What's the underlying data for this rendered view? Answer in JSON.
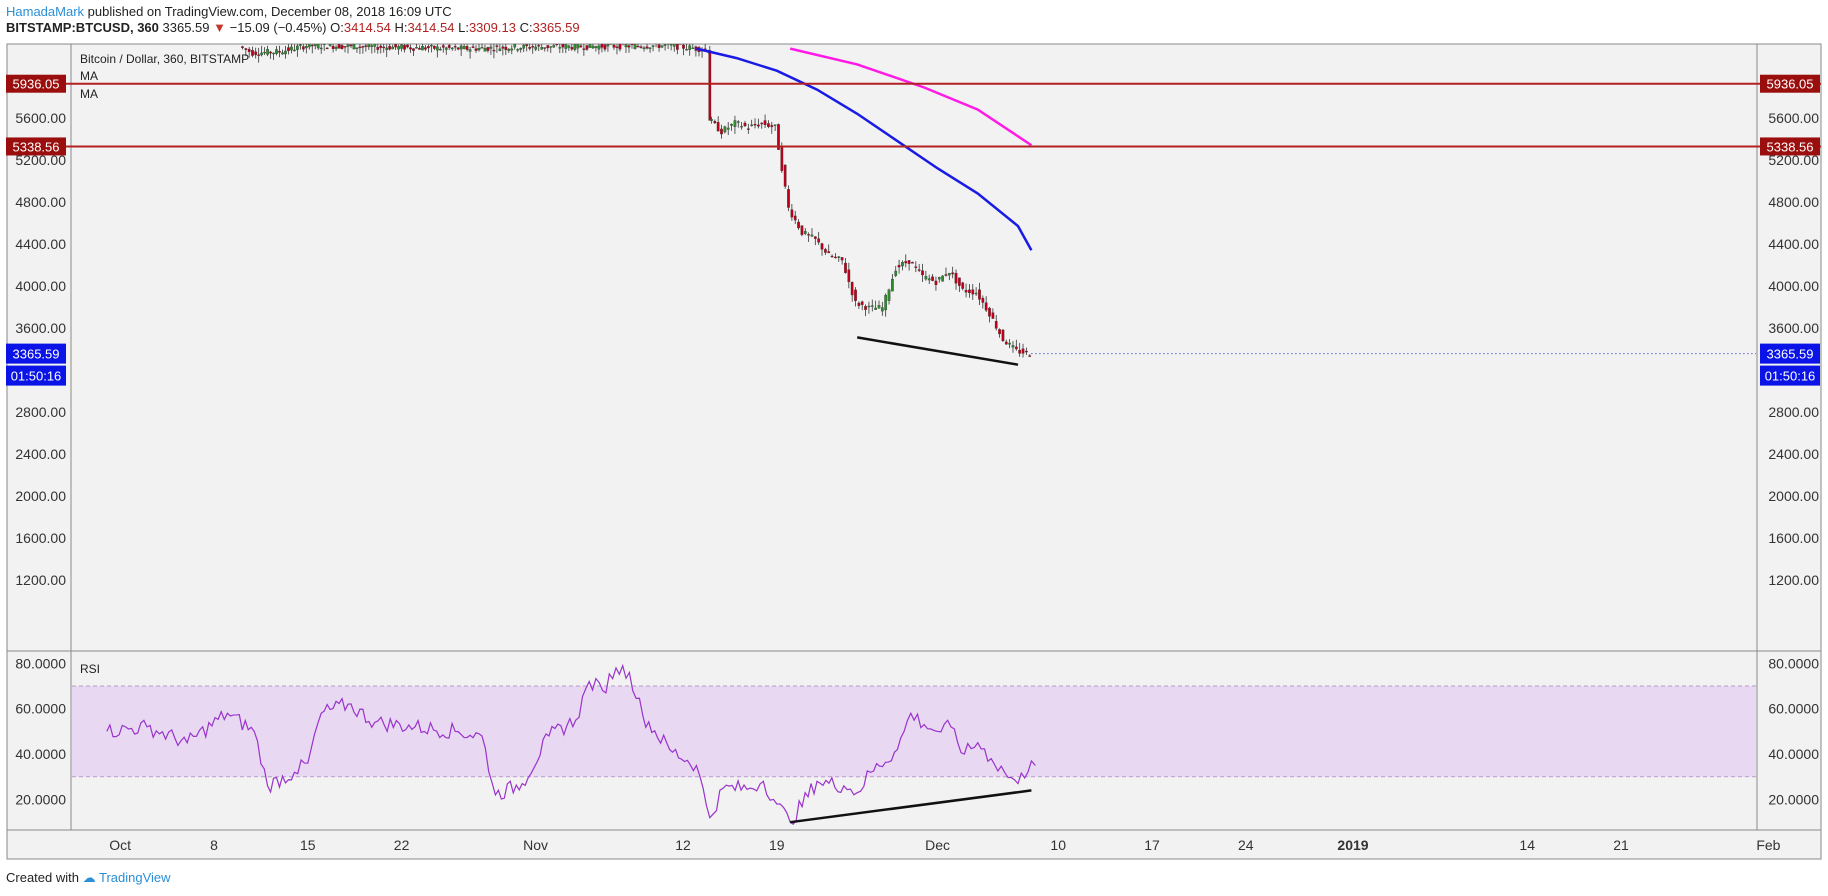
{
  "header": {
    "author": "HamadaMark",
    "published": "published on TradingView.com, December 08, 2018 16:09 UTC",
    "symbol": "BITSTAMP:BTCUSD, 360",
    "last": "3365.59",
    "change_arrow": "▼",
    "change": "−15.09 (−0.45%)",
    "o_label": "O:",
    "o": "3414.54",
    "h_label": "H:",
    "h": "3414.54",
    "l_label": "L:",
    "l": "3309.13",
    "c_label": "C:",
    "c": "3365.59"
  },
  "legend": {
    "title": "Bitcoin / Dollar, 360, BITSTAMP",
    "ma1": "MA",
    "ma2": "MA",
    "rsi": "RSI"
  },
  "footer": {
    "created": "Created with",
    "brand": "TradingView"
  },
  "colors": {
    "bull": "#2e8b2e",
    "bear": "#c0001a",
    "ma_fast": "#1a1ae6",
    "ma_slow": "#ff1ae6",
    "level": "#b22222",
    "price_tag": "#0a14e6",
    "rsi_line": "#9933cc",
    "rsi_band": "#e8d8f2"
  },
  "chart_data": [
    {
      "type": "candlestick",
      "title": "Bitcoin / Dollar, 360, BITSTAMP",
      "ylim": [
        800,
        6200
      ],
      "y_ticks": [
        "1200.00",
        "1600.00",
        "2000.00",
        "2400.00",
        "2800.00",
        "3600.00",
        "4000.00",
        "4400.00",
        "4800.00",
        "5200.00",
        "5600.00"
      ],
      "x_ticks": [
        "Oct",
        "8",
        "15",
        "22",
        "Nov",
        "12",
        "19",
        "Dec",
        "10",
        "17",
        "24",
        "2019",
        "14",
        "21",
        "Feb"
      ],
      "levels": [
        {
          "label": "5936.05",
          "value": 5936.05
        },
        {
          "label": "5338.56",
          "value": 5338.56
        }
      ],
      "last_price": {
        "label": "3365.59",
        "value": 3365.59,
        "countdown": "01:50:16"
      },
      "close_path": [
        {
          "x": "2018-10-10",
          "y": 6290
        },
        {
          "x": "2018-10-11",
          "y": 6230
        },
        {
          "x": "2018-10-13",
          "y": 6240
        },
        {
          "x": "2018-10-15",
          "y": 6300
        },
        {
          "x": "2018-10-27",
          "y": 6270
        },
        {
          "x": "2018-10-31",
          "y": 6285
        },
        {
          "x": "2018-11-11",
          "y": 6300
        },
        {
          "x": "2018-11-14",
          "y": 6260
        },
        {
          "x": "2018-11-14",
          "y": 5600
        },
        {
          "x": "2018-11-15",
          "y": 5480
        },
        {
          "x": "2018-11-16",
          "y": 5560
        },
        {
          "x": "2018-11-17",
          "y": 5520
        },
        {
          "x": "2018-11-18",
          "y": 5560
        },
        {
          "x": "2018-11-19",
          "y": 5520
        },
        {
          "x": "2018-11-20",
          "y": 4750
        },
        {
          "x": "2018-11-21",
          "y": 4520
        },
        {
          "x": "2018-11-22",
          "y": 4450
        },
        {
          "x": "2018-11-23",
          "y": 4300
        },
        {
          "x": "2018-11-24",
          "y": 4250
        },
        {
          "x": "2018-11-25",
          "y": 3850
        },
        {
          "x": "2018-11-26",
          "y": 3800
        },
        {
          "x": "2018-11-27",
          "y": 3800
        },
        {
          "x": "2018-11-28",
          "y": 4180
        },
        {
          "x": "2018-11-29",
          "y": 4250
        },
        {
          "x": "2018-11-30",
          "y": 4100
        },
        {
          "x": "2018-12-01",
          "y": 4050
        },
        {
          "x": "2018-12-02",
          "y": 4150
        },
        {
          "x": "2018-12-03",
          "y": 3970
        },
        {
          "x": "2018-12-04",
          "y": 3950
        },
        {
          "x": "2018-12-05",
          "y": 3750
        },
        {
          "x": "2018-12-06",
          "y": 3500
        },
        {
          "x": "2018-12-07",
          "y": 3390
        },
        {
          "x": "2018-12-08",
          "y": 3366
        }
      ],
      "ma_fast": [
        {
          "x": "2018-11-13",
          "y": 6270
        },
        {
          "x": "2018-11-16",
          "y": 6180
        },
        {
          "x": "2018-11-19",
          "y": 6060
        },
        {
          "x": "2018-11-22",
          "y": 5880
        },
        {
          "x": "2018-11-25",
          "y": 5650
        },
        {
          "x": "2018-11-28",
          "y": 5390
        },
        {
          "x": "2018-12-01",
          "y": 5130
        },
        {
          "x": "2018-12-04",
          "y": 4890
        },
        {
          "x": "2018-12-07",
          "y": 4580
        },
        {
          "x": "2018-12-08",
          "y": 4350
        }
      ],
      "ma_slow": [
        {
          "x": "2018-11-20",
          "y": 6270
        },
        {
          "x": "2018-11-25",
          "y": 6120
        },
        {
          "x": "2018-11-30",
          "y": 5900
        },
        {
          "x": "2018-12-04",
          "y": 5690
        },
        {
          "x": "2018-12-08",
          "y": 5350
        }
      ],
      "trendline": [
        {
          "x": "2018-11-25",
          "y": 3520
        },
        {
          "x": "2018-12-07",
          "y": 3260
        }
      ]
    },
    {
      "type": "line",
      "title": "RSI",
      "ylim": [
        7,
        85
      ],
      "y_ticks": [
        "20.0000",
        "40.0000",
        "60.0000",
        "80.0000"
      ],
      "band": [
        30,
        70
      ],
      "series": [
        {
          "values": [
            {
              "x": "2018-09-30",
              "y": 50
            },
            {
              "x": "2018-10-03",
              "y": 52
            },
            {
              "x": "2018-10-06",
              "y": 45
            },
            {
              "x": "2018-10-09",
              "y": 58
            },
            {
              "x": "2018-10-11",
              "y": 50
            },
            {
              "x": "2018-10-12",
              "y": 26
            },
            {
              "x": "2018-10-14",
              "y": 32
            },
            {
              "x": "2018-10-15",
              "y": 36
            },
            {
              "x": "2018-10-16",
              "y": 58
            },
            {
              "x": "2018-10-18",
              "y": 62
            },
            {
              "x": "2018-10-20",
              "y": 54
            },
            {
              "x": "2018-10-23",
              "y": 52
            },
            {
              "x": "2018-10-26",
              "y": 50
            },
            {
              "x": "2018-10-28",
              "y": 48
            },
            {
              "x": "2018-10-29",
              "y": 22
            },
            {
              "x": "2018-10-31",
              "y": 27
            },
            {
              "x": "2018-11-02",
              "y": 48
            },
            {
              "x": "2018-11-04",
              "y": 55
            },
            {
              "x": "2018-11-05",
              "y": 72
            },
            {
              "x": "2018-11-06",
              "y": 68
            },
            {
              "x": "2018-11-07",
              "y": 78
            },
            {
              "x": "2018-11-08",
              "y": 76
            },
            {
              "x": "2018-11-09",
              "y": 57
            },
            {
              "x": "2018-11-11",
              "y": 42
            },
            {
              "x": "2018-11-13",
              "y": 35
            },
            {
              "x": "2018-11-14",
              "y": 12
            },
            {
              "x": "2018-11-15",
              "y": 25
            },
            {
              "x": "2018-11-17",
              "y": 25
            },
            {
              "x": "2018-11-18",
              "y": 28
            },
            {
              "x": "2018-11-19",
              "y": 18
            },
            {
              "x": "2018-11-20",
              "y": 10
            },
            {
              "x": "2018-11-22",
              "y": 28
            },
            {
              "x": "2018-11-24",
              "y": 26
            },
            {
              "x": "2018-11-25",
              "y": 23
            },
            {
              "x": "2018-11-26",
              "y": 32
            },
            {
              "x": "2018-11-28",
              "y": 42
            },
            {
              "x": "2018-11-29",
              "y": 58
            },
            {
              "x": "2018-11-30",
              "y": 53
            },
            {
              "x": "2018-12-01",
              "y": 50
            },
            {
              "x": "2018-12-02",
              "y": 52
            },
            {
              "x": "2018-12-03",
              "y": 40
            },
            {
              "x": "2018-12-04",
              "y": 45
            },
            {
              "x": "2018-12-05",
              "y": 38
            },
            {
              "x": "2018-12-06",
              "y": 32
            },
            {
              "x": "2018-12-07",
              "y": 27
            },
            {
              "x": "2018-12-08",
              "y": 37
            },
            {
              "x": "2018-12-08",
              "y": 35
            }
          ]
        }
      ],
      "last_value": 35,
      "trendline": [
        {
          "x": "2018-11-20",
          "y": 10
        },
        {
          "x": "2018-12-08",
          "y": 24
        }
      ]
    }
  ]
}
